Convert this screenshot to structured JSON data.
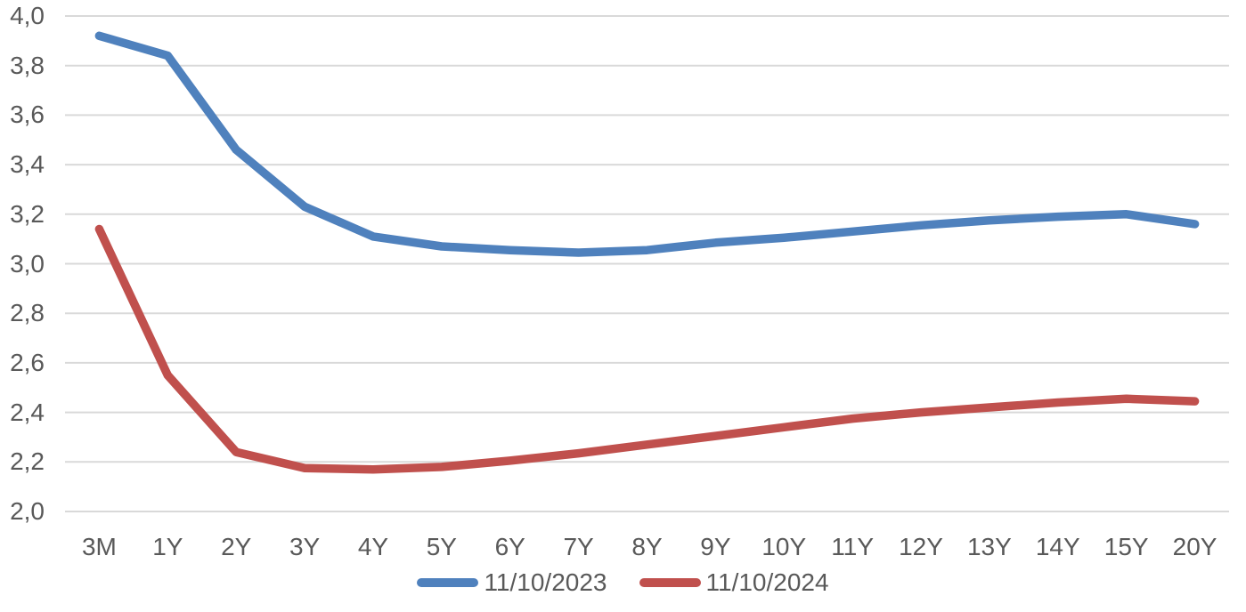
{
  "chart_data": {
    "type": "line",
    "title": "",
    "xlabel": "",
    "ylabel": "",
    "categories": [
      "3M",
      "1Y",
      "2Y",
      "3Y",
      "4Y",
      "5Y",
      "6Y",
      "7Y",
      "8Y",
      "9Y",
      "10Y",
      "11Y",
      "12Y",
      "13Y",
      "14Y",
      "15Y",
      "20Y"
    ],
    "series": [
      {
        "name": "11/10/2023",
        "color": "#4F81BD",
        "values": [
          3.92,
          3.84,
          3.46,
          3.23,
          3.11,
          3.07,
          3.055,
          3.045,
          3.055,
          3.085,
          3.105,
          3.13,
          3.155,
          3.175,
          3.19,
          3.2,
          3.16
        ]
      },
      {
        "name": "11/10/2024",
        "color": "#C0504D",
        "values": [
          3.14,
          2.55,
          2.24,
          2.175,
          2.17,
          2.18,
          2.205,
          2.235,
          2.27,
          2.305,
          2.34,
          2.375,
          2.4,
          2.42,
          2.44,
          2.455,
          2.445
        ]
      }
    ],
    "ylim": [
      2.0,
      4.0
    ],
    "ytick_step": 0.2,
    "ytick_labels": [
      "2,0",
      "2,2",
      "2,4",
      "2,6",
      "2,8",
      "3,0",
      "3,2",
      "3,4",
      "3,6",
      "3,8",
      "4,0"
    ],
    "grid": "horizontal",
    "grid_color": "#D9D9D9",
    "axis_text_color": "#595959",
    "legend_position": "bottom"
  }
}
